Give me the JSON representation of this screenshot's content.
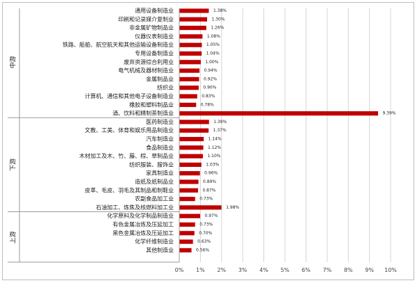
{
  "chart_data": {
    "type": "bar",
    "orientation": "horizontal",
    "title": "",
    "xlabel": "",
    "ylabel": "",
    "xlim": [
      0,
      10
    ],
    "x_ticks": [
      "0%",
      "1%",
      "2%",
      "3%",
      "4%",
      "5%",
      "6%",
      "7%",
      "8%",
      "9%",
      "10%"
    ],
    "grid": true,
    "bar_color": "#c00000",
    "groups": [
      {
        "name": "中游",
        "start": 0,
        "end": 12
      },
      {
        "name": "下游",
        "start": 13,
        "end": 23
      },
      {
        "name": "上游",
        "start": 24,
        "end": 29
      }
    ],
    "categories": [
      "通用设备制造业",
      "印刷和记录媒介复制业",
      "非金属矿物制品业",
      "仪器仪表制造业",
      "铁路、船舶、航空航天和其他运输设备制造业",
      "专用设备制造业",
      "废弃资源综合利用业",
      "电气机械及器材制造业",
      "金属制品业",
      "纺织业",
      "计算机、通信和其他电子设备制造业",
      "橡胶和塑料制品业",
      "酒、饮料和精制茶制造业",
      "医药制造业",
      "文教、工美、体育和娱乐用品制造业",
      "汽车制造业",
      "食品制造业",
      "木材加工及木、竹、藤、棕、草制品业",
      "纺织服装、服饰业",
      "家具制造业",
      "造纸及纸制品业",
      "皮革、毛皮、羽毛及其制品和制鞋业",
      "农副食品加工业",
      "石油加工、炼焦及核燃料加工业",
      "化学原料及化学制品制造业",
      "有色金属冶炼及压延加工",
      "黑色金属冶炼及压延加工",
      "化学纤维制造业",
      "其他制造业"
    ],
    "values": [
      1.38,
      1.3,
      1.26,
      1.08,
      1.05,
      1.04,
      1.0,
      0.94,
      0.92,
      0.9,
      0.83,
      0.78,
      9.39,
      1.39,
      1.37,
      1.14,
      1.12,
      1.1,
      1.03,
      0.96,
      0.89,
      0.87,
      0.73,
      1.98,
      0.97,
      0.73,
      0.7,
      0.63,
      0.56
    ],
    "value_labels": [
      "1.38%",
      "1.30%",
      "1.26%",
      "1.08%",
      "1.05%",
      "1.04%",
      "1.00%",
      "0.94%",
      "0.92%",
      "0.90%",
      "0.83%",
      "0.78%",
      "9.39%",
      "1.39%",
      "1.37%",
      "1.14%",
      "1.12%",
      "1.10%",
      "1.03%",
      "0.96%",
      "0.89%",
      "0.87%",
      "0.73%",
      "1.98%",
      "0.97%",
      "0.73%",
      "0.70%",
      "0.63%",
      "0.56%"
    ]
  }
}
